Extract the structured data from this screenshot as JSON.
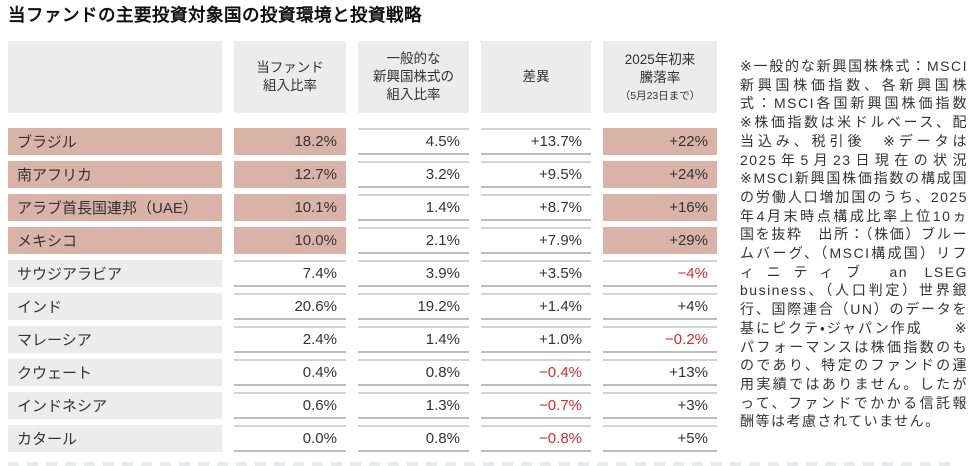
{
  "title": "当ファンドの主要投資対象国の投資環境と投資戦略",
  "colors": {
    "highlight": "#d9b2a8",
    "cellgray": "#ececec",
    "negative": "#cf2e31",
    "ink": "#333333"
  },
  "table": {
    "headers": {
      "country": "",
      "fund": "当ファンド\n組入比率",
      "general": "一般的な\n新興国株式の\n組入比率",
      "diff": "差異",
      "ytd_main": "2025年初来\n騰落率",
      "ytd_sub": "（5月23日まで）"
    },
    "rows": [
      {
        "country": "ブラジル",
        "fund": "18.2%",
        "general": "4.5%",
        "diff": "+13.7%",
        "ytd": "+22%",
        "highlight": true,
        "diff_negative": false,
        "ytd_negative": false
      },
      {
        "country": "南アフリカ",
        "fund": "12.7%",
        "general": "3.2%",
        "diff": "+9.5%",
        "ytd": "+24%",
        "highlight": true,
        "diff_negative": false,
        "ytd_negative": false
      },
      {
        "country": "アラブ首長国連邦（UAE）",
        "fund": "10.1%",
        "general": "1.4%",
        "diff": "+8.7%",
        "ytd": "+16%",
        "highlight": true,
        "diff_negative": false,
        "ytd_negative": false
      },
      {
        "country": "メキシコ",
        "fund": "10.0%",
        "general": "2.1%",
        "diff": "+7.9%",
        "ytd": "+29%",
        "highlight": true,
        "diff_negative": false,
        "ytd_negative": false
      },
      {
        "country": "サウジアラビア",
        "fund": "7.4%",
        "general": "3.9%",
        "diff": "+3.5%",
        "ytd": "−4%",
        "highlight": false,
        "diff_negative": false,
        "ytd_negative": true
      },
      {
        "country": "インド",
        "fund": "20.6%",
        "general": "19.2%",
        "diff": "+1.4%",
        "ytd": "+4%",
        "highlight": false,
        "diff_negative": false,
        "ytd_negative": false
      },
      {
        "country": "マレーシア",
        "fund": "2.4%",
        "general": "1.4%",
        "diff": "+1.0%",
        "ytd": "−0.2%",
        "highlight": false,
        "diff_negative": false,
        "ytd_negative": true
      },
      {
        "country": "クウェート",
        "fund": "0.4%",
        "general": "0.8%",
        "diff": "−0.4%",
        "ytd": "+13%",
        "highlight": false,
        "diff_negative": true,
        "ytd_negative": false
      },
      {
        "country": "インドネシア",
        "fund": "0.6%",
        "general": "1.3%",
        "diff": "−0.7%",
        "ytd": "+3%",
        "highlight": false,
        "diff_negative": true,
        "ytd_negative": false
      },
      {
        "country": "カタール",
        "fund": "0.0%",
        "general": "0.8%",
        "diff": "−0.8%",
        "ytd": "+5%",
        "highlight": false,
        "diff_negative": true,
        "ytd_negative": false
      }
    ]
  },
  "note": "※一般的な新興国株株式：MSCI新興国株価指数、各新興国株式：MSCI各国新興国株価指数　※株価指数は米ドルベース、配当込み、税引後　※データは2025年5月23日現在の状況　※MSCI新興国株価指数の構成国の労働人口増加国のうち、2025年4月末時点構成比率上位10ヵ国を抜粋　出所：（株価）ブルームバーグ、（MSCI構成国）リフィニティブ an LSEG business、（人口判定）世界銀行、国際連合（UN）のデータを基にピクテ・ジャパン作成　　※パフォーマンスは株価指数のものであり、特定のファンドの運用実績ではありません。したがって、ファンドでかかる信託報酬等は考慮されていません。"
}
